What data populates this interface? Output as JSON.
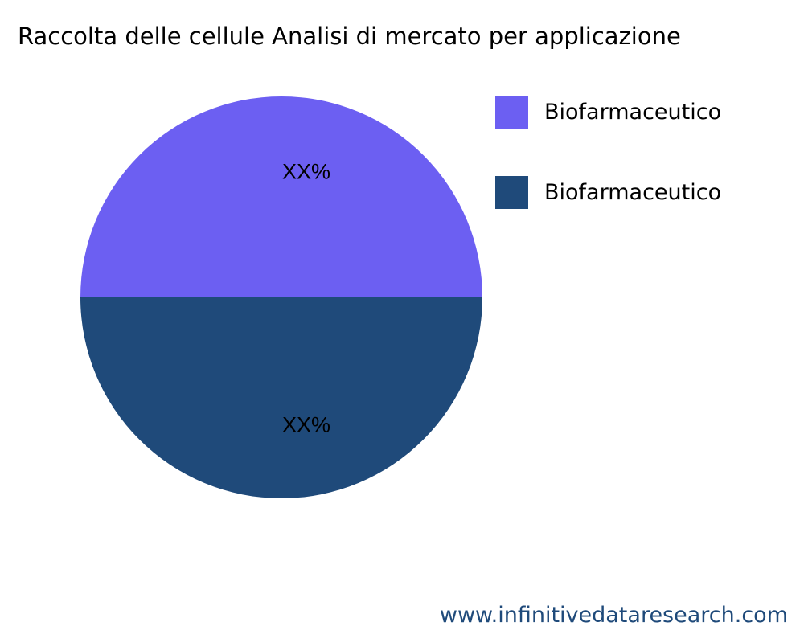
{
  "chart_data": {
    "type": "pie",
    "title": "Raccolta delle cellule Analisi di mercato per applicazione",
    "slices": [
      {
        "name": "Biofarmaceutico",
        "value": 50,
        "label": "XX%",
        "color": "#6c5ff2"
      },
      {
        "name": "Biofarmaceutico",
        "value": 50,
        "label": "XX%",
        "color": "#1f4a7a"
      }
    ],
    "legend_position": "right"
  },
  "watermark": "www.infinitivedataresearch.com"
}
